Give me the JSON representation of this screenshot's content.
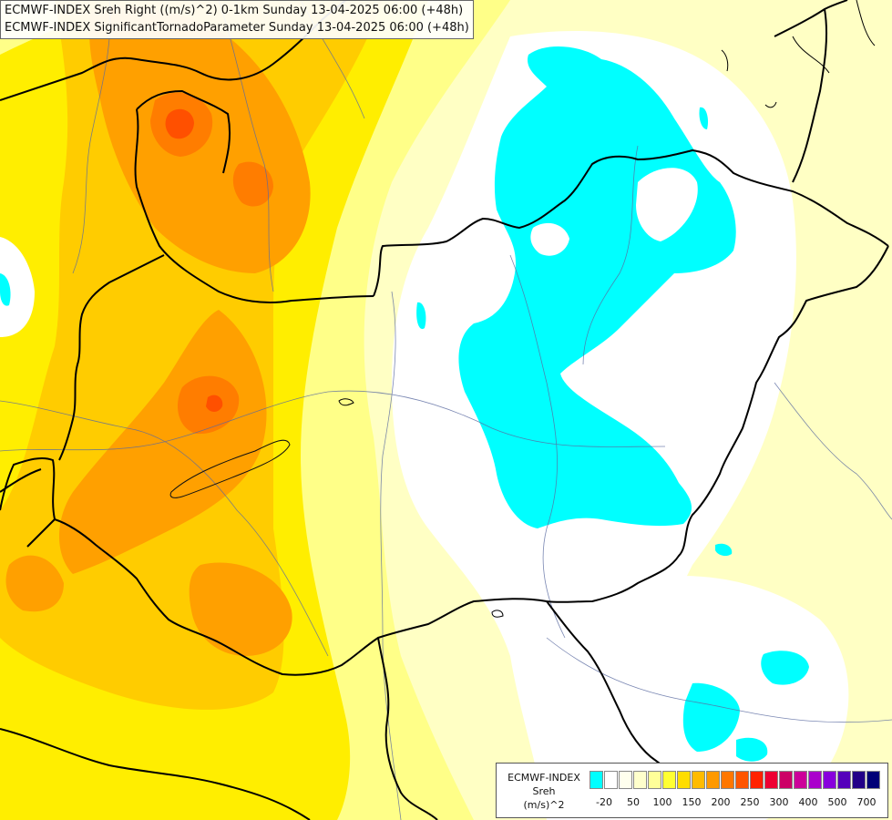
{
  "title": {
    "line1": "ECMWF-INDEX Sreh Right ((m/s)^2) 0-1km Sunday 13-04-2025 06:00 (+48h)",
    "line2": "ECMWF-INDEX SignificantTornadoParameter Sunday 13-04-2025 06:00 (+48h)"
  },
  "legend": {
    "line1": "ECMWF-INDEX",
    "line2": "Sreh",
    "line3": "(m/s)^2",
    "colors": [
      "#00ffff",
      "#ffffff",
      "#ffffee",
      "#ffffcc",
      "#ffff99",
      "#ffff33",
      "#ffdd00",
      "#ffbb00",
      "#ff9900",
      "#ff7700",
      "#ff5500",
      "#ff2200",
      "#ee0033",
      "#cc0066",
      "#cc0099",
      "#aa00cc",
      "#8800dd",
      "#5500bb",
      "#220088",
      "#000077"
    ],
    "ticks": [
      "-20",
      "50",
      "100",
      "150",
      "200",
      "250",
      "300",
      "400",
      "500",
      "700"
    ]
  },
  "colors": {
    "cyan": "#00ffff",
    "white": "#ffffff",
    "pale": "#ffffc4",
    "light_yellow": "#ffff88",
    "yellow": "#ffee00",
    "gold": "#ffcc00",
    "orange": "#ffa000",
    "deep_orange": "#ff7d00",
    "red_orange": "#ff5000"
  }
}
